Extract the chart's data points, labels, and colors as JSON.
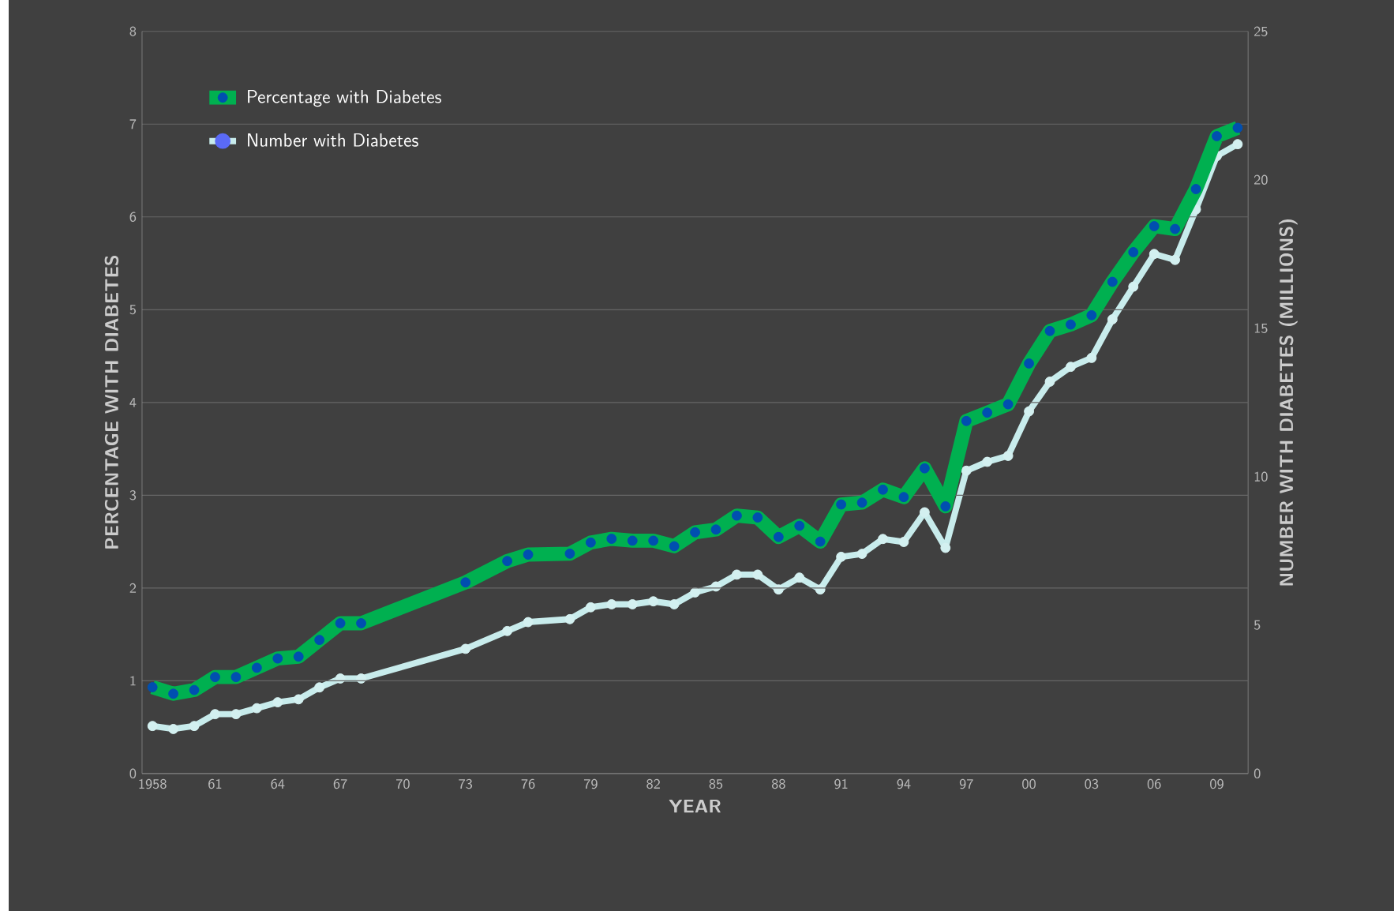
{
  "chart_data": {
    "type": "line",
    "xlabel": "YEAR",
    "ylabel": "PERCENTAGE WITH DIABETES",
    "y2label": "NUMBER WITH DIABETES (MILLIONS)",
    "x": [
      1958,
      1959,
      1960,
      1961,
      1962,
      1963,
      1964,
      1965,
      1966,
      1967,
      1968,
      1973,
      1975,
      1976,
      1978,
      1979,
      1980,
      1981,
      1982,
      1983,
      1984,
      1985,
      1986,
      1987,
      1988,
      1989,
      1990,
      1991,
      1992,
      1993,
      1994,
      1995,
      1996,
      1997,
      1998,
      1999,
      2000,
      2001,
      2002,
      2003,
      2004,
      2005,
      2006,
      2007,
      2008,
      2009,
      2010
    ],
    "series": [
      {
        "name": "Percentage with Diabetes",
        "color": "#00b050",
        "values": [
          0.93,
          0.86,
          0.9,
          1.04,
          1.04,
          1.14,
          1.24,
          1.26,
          1.44,
          1.62,
          1.62,
          2.06,
          2.29,
          2.36,
          2.37,
          2.49,
          2.53,
          2.51,
          2.51,
          2.45,
          2.6,
          2.63,
          2.78,
          2.76,
          2.55,
          2.67,
          2.5,
          2.9,
          2.92,
          3.06,
          2.98,
          3.29,
          2.88,
          3.8,
          3.89,
          3.98,
          4.42,
          4.77,
          4.84,
          4.94,
          5.3,
          5.62,
          5.9,
          5.87,
          6.3,
          6.87,
          6.96
        ]
      },
      {
        "name": "Number with Diabetes",
        "color": "#c8ecec",
        "axis": "y2",
        "values": [
          1.6,
          1.5,
          1.6,
          2.0,
          2.0,
          2.2,
          2.4,
          2.5,
          2.9,
          3.2,
          3.2,
          4.2,
          4.8,
          5.1,
          5.2,
          5.6,
          5.7,
          5.7,
          5.8,
          5.7,
          6.1,
          6.3,
          6.7,
          6.7,
          6.2,
          6.6,
          6.2,
          7.3,
          7.4,
          7.9,
          7.8,
          8.8,
          7.6,
          10.2,
          10.5,
          10.7,
          12.2,
          13.2,
          13.7,
          14.0,
          15.3,
          16.4,
          17.5,
          17.3,
          19.0,
          20.8,
          21.2
        ]
      }
    ],
    "xlim": [
      1957.5,
      2010.5
    ],
    "xticks": [
      {
        "value": 1958,
        "label": "1958"
      },
      {
        "value": 1961,
        "label": "61"
      },
      {
        "value": 1964,
        "label": "64"
      },
      {
        "value": 1967,
        "label": "67"
      },
      {
        "value": 1970,
        "label": "70"
      },
      {
        "value": 1973,
        "label": "73"
      },
      {
        "value": 1976,
        "label": "76"
      },
      {
        "value": 1979,
        "label": "79"
      },
      {
        "value": 1982,
        "label": "82"
      },
      {
        "value": 1985,
        "label": "85"
      },
      {
        "value": 1988,
        "label": "88"
      },
      {
        "value": 1991,
        "label": "91"
      },
      {
        "value": 1994,
        "label": "94"
      },
      {
        "value": 1997,
        "label": "97"
      },
      {
        "value": 2000,
        "label": "00"
      },
      {
        "value": 2003,
        "label": "03"
      },
      {
        "value": 2006,
        "label": "06"
      },
      {
        "value": 2009,
        "label": "09"
      }
    ],
    "ylim": [
      0,
      8
    ],
    "yticks": [
      0,
      1,
      2,
      3,
      4,
      5,
      6,
      7,
      8
    ],
    "y2lim": [
      0,
      25
    ],
    "y2ticks": [
      0,
      5,
      10,
      15,
      20,
      25
    ],
    "grid": "y",
    "legend": "top left",
    "marker": "circle",
    "line_style": "solid"
  }
}
